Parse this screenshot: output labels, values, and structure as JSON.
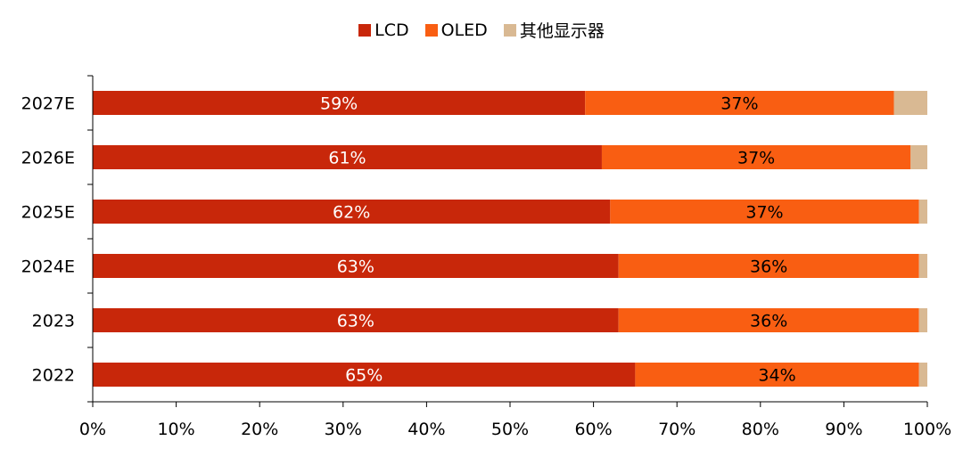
{
  "chart_data": {
    "type": "bar",
    "orientation": "horizontal",
    "stacked": true,
    "categories": [
      "2027E",
      "2026E",
      "2025E",
      "2024E",
      "2023",
      "2022"
    ],
    "series": [
      {
        "name": "LCD",
        "color": "#c8270a",
        "values": [
          59,
          61,
          62,
          63,
          63,
          65
        ],
        "labels": [
          "59%",
          "61%",
          "62%",
          "63%",
          "63%",
          "65%"
        ]
      },
      {
        "name": "OLED",
        "color": "#f95e12",
        "values": [
          37,
          37,
          37,
          36,
          36,
          34
        ],
        "labels": [
          "37%",
          "37%",
          "37%",
          "36%",
          "36%",
          "34%"
        ]
      },
      {
        "name": "其他显示器",
        "color": "#d9b993",
        "values": [
          4,
          3,
          2,
          1,
          1,
          1
        ]
      }
    ],
    "x_ticks": [
      "0%",
      "10%",
      "20%",
      "30%",
      "40%",
      "50%",
      "60%",
      "70%",
      "80%",
      "90%",
      "100%"
    ],
    "xlim": [
      0,
      100
    ],
    "legend_position": "top-center",
    "grid": false
  }
}
